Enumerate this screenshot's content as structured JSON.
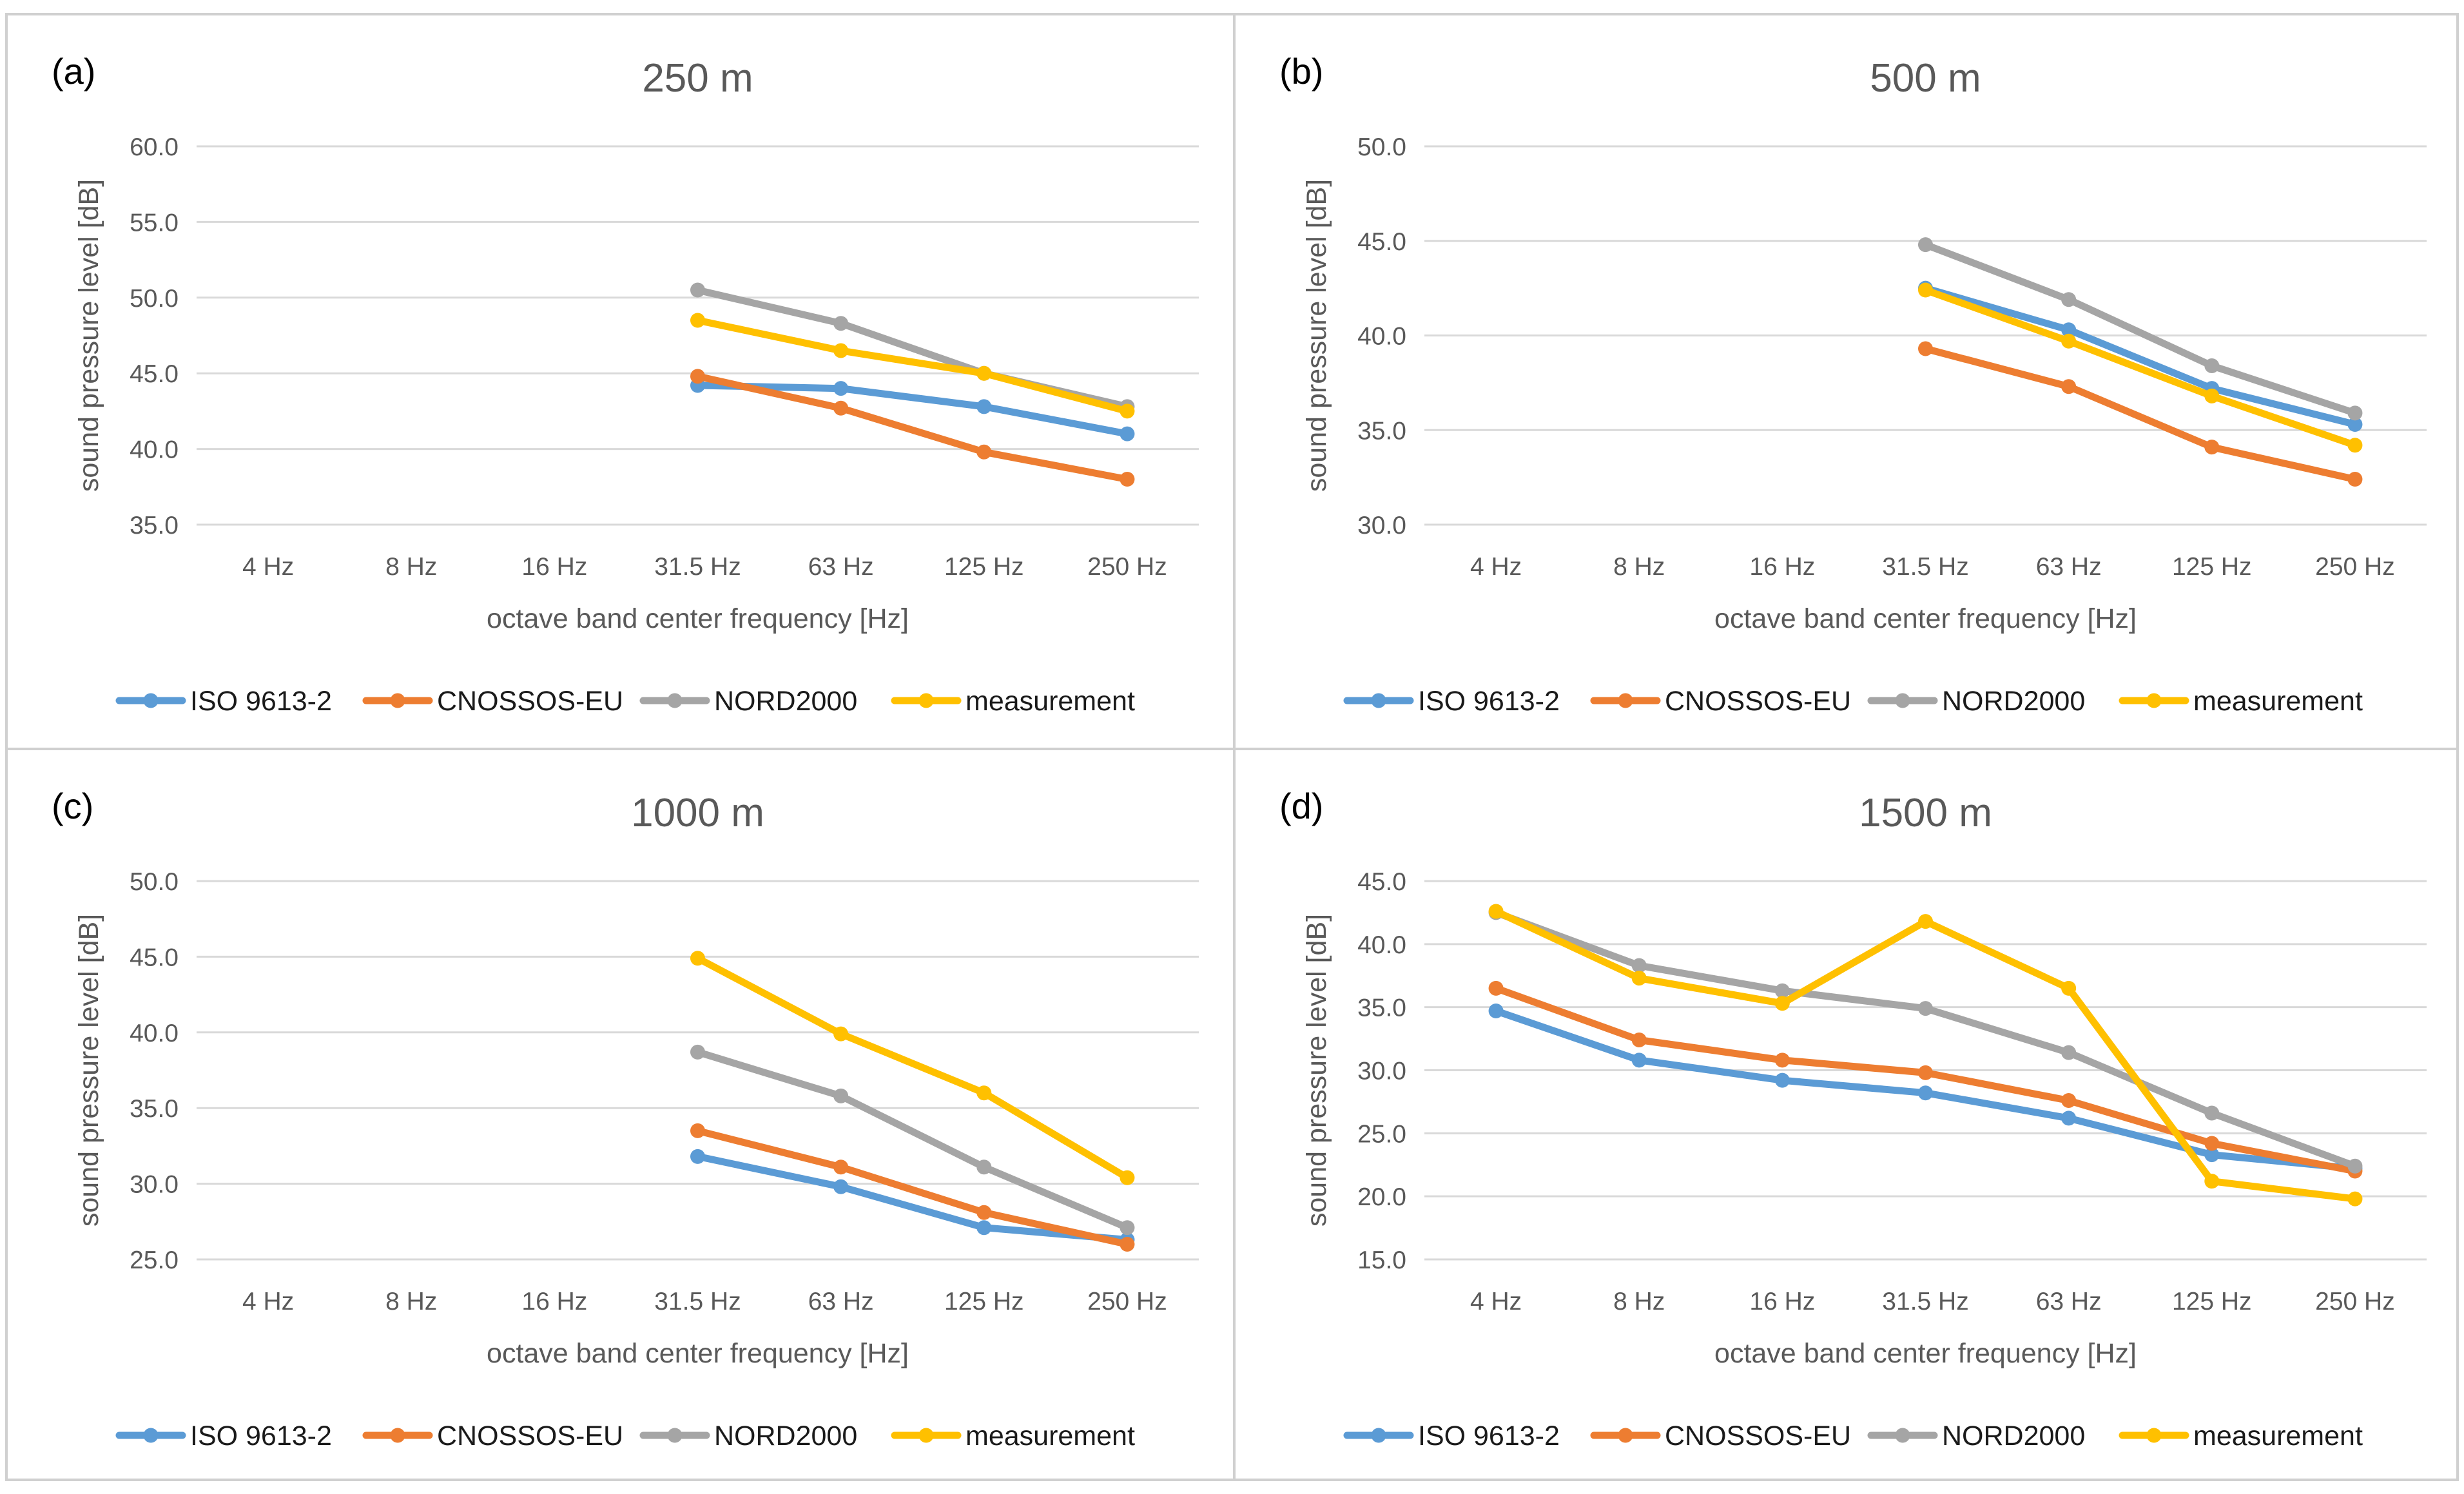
{
  "series_styles": [
    {
      "name": "ISO 9613-2",
      "color": "#5B9BD5"
    },
    {
      "name": "CNOSSOS-EU",
      "color": "#ED7D31"
    },
    {
      "name": "NORD2000",
      "color": "#A5A5A5"
    },
    {
      "name": "measurement",
      "color": "#FFC000"
    }
  ],
  "chart_data": [
    {
      "type": "line",
      "panel_label": "(a)",
      "title": "250 m",
      "xlabel": "octave band center frequency [Hz]",
      "ylabel": "sound pressure level  [dB]",
      "categories": [
        "4 Hz",
        "8 Hz",
        "16 Hz",
        "31.5 Hz",
        "63 Hz",
        "125 Hz",
        "250 Hz"
      ],
      "ylim": [
        35,
        60
      ],
      "ytick_step": 5,
      "legend_position": "bottom",
      "series": [
        {
          "name": "ISO 9613-2",
          "values": [
            null,
            null,
            null,
            44.2,
            44.0,
            42.8,
            41.0
          ]
        },
        {
          "name": "CNOSSOS-EU",
          "values": [
            null,
            null,
            null,
            44.8,
            42.7,
            39.8,
            38.0
          ]
        },
        {
          "name": "NORD2000",
          "values": [
            null,
            null,
            null,
            50.5,
            48.3,
            45.0,
            42.8
          ]
        },
        {
          "name": "measurement",
          "values": [
            null,
            null,
            null,
            48.5,
            46.5,
            45.0,
            42.5
          ]
        }
      ]
    },
    {
      "type": "line",
      "panel_label": "(b)",
      "title": "500 m",
      "xlabel": "octave band center frequency [Hz]",
      "ylabel": "sound pressure level  [dB]",
      "categories": [
        "4 Hz",
        "8 Hz",
        "16 Hz",
        "31.5 Hz",
        "63 Hz",
        "125 Hz",
        "250 Hz"
      ],
      "ylim": [
        30,
        50
      ],
      "ytick_step": 5,
      "legend_position": "bottom",
      "series": [
        {
          "name": "ISO 9613-2",
          "values": [
            null,
            null,
            null,
            42.5,
            40.3,
            37.2,
            35.3
          ]
        },
        {
          "name": "CNOSSOS-EU",
          "values": [
            null,
            null,
            null,
            39.3,
            37.3,
            34.1,
            32.4
          ]
        },
        {
          "name": "NORD2000",
          "values": [
            null,
            null,
            null,
            44.8,
            41.9,
            38.4,
            35.9
          ]
        },
        {
          "name": "measurement",
          "values": [
            null,
            null,
            null,
            42.4,
            39.7,
            36.8,
            34.2
          ]
        }
      ]
    },
    {
      "type": "line",
      "panel_label": "(c)",
      "title": "1000 m",
      "xlabel": "octave band center frequency [Hz]",
      "ylabel": "sound pressure level  [dB]",
      "categories": [
        "4 Hz",
        "8 Hz",
        "16 Hz",
        "31.5 Hz",
        "63 Hz",
        "125 Hz",
        "250 Hz"
      ],
      "ylim": [
        25,
        50
      ],
      "ytick_step": 5,
      "legend_position": "bottom",
      "series": [
        {
          "name": "ISO 9613-2",
          "values": [
            null,
            null,
            null,
            31.8,
            29.8,
            27.1,
            26.3
          ]
        },
        {
          "name": "CNOSSOS-EU",
          "values": [
            null,
            null,
            null,
            33.5,
            31.1,
            28.1,
            26.0
          ]
        },
        {
          "name": "NORD2000",
          "values": [
            null,
            null,
            null,
            38.7,
            35.8,
            31.1,
            27.1
          ]
        },
        {
          "name": "measurement",
          "values": [
            null,
            null,
            null,
            44.9,
            39.9,
            36.0,
            30.4
          ]
        }
      ]
    },
    {
      "type": "line",
      "panel_label": "(d)",
      "title": "1500 m",
      "xlabel": "octave band center frequency [Hz]",
      "ylabel": "sound pressure level  [dB]",
      "categories": [
        "4 Hz",
        "8 Hz",
        "16 Hz",
        "31.5 Hz",
        "63 Hz",
        "125 Hz",
        "250 Hz"
      ],
      "ylim": [
        15,
        45
      ],
      "ytick_step": 5,
      "legend_position": "bottom",
      "series": [
        {
          "name": "ISO 9613-2",
          "values": [
            34.7,
            30.8,
            29.2,
            28.2,
            26.2,
            23.3,
            22.2
          ]
        },
        {
          "name": "CNOSSOS-EU",
          "values": [
            36.5,
            32.4,
            30.8,
            29.8,
            27.6,
            24.2,
            22.0
          ]
        },
        {
          "name": "NORD2000",
          "values": [
            42.5,
            38.3,
            36.3,
            34.9,
            31.4,
            26.6,
            22.4
          ]
        },
        {
          "name": "measurement",
          "values": [
            42.6,
            37.3,
            35.3,
            41.8,
            36.5,
            21.2,
            19.8
          ]
        }
      ]
    }
  ]
}
